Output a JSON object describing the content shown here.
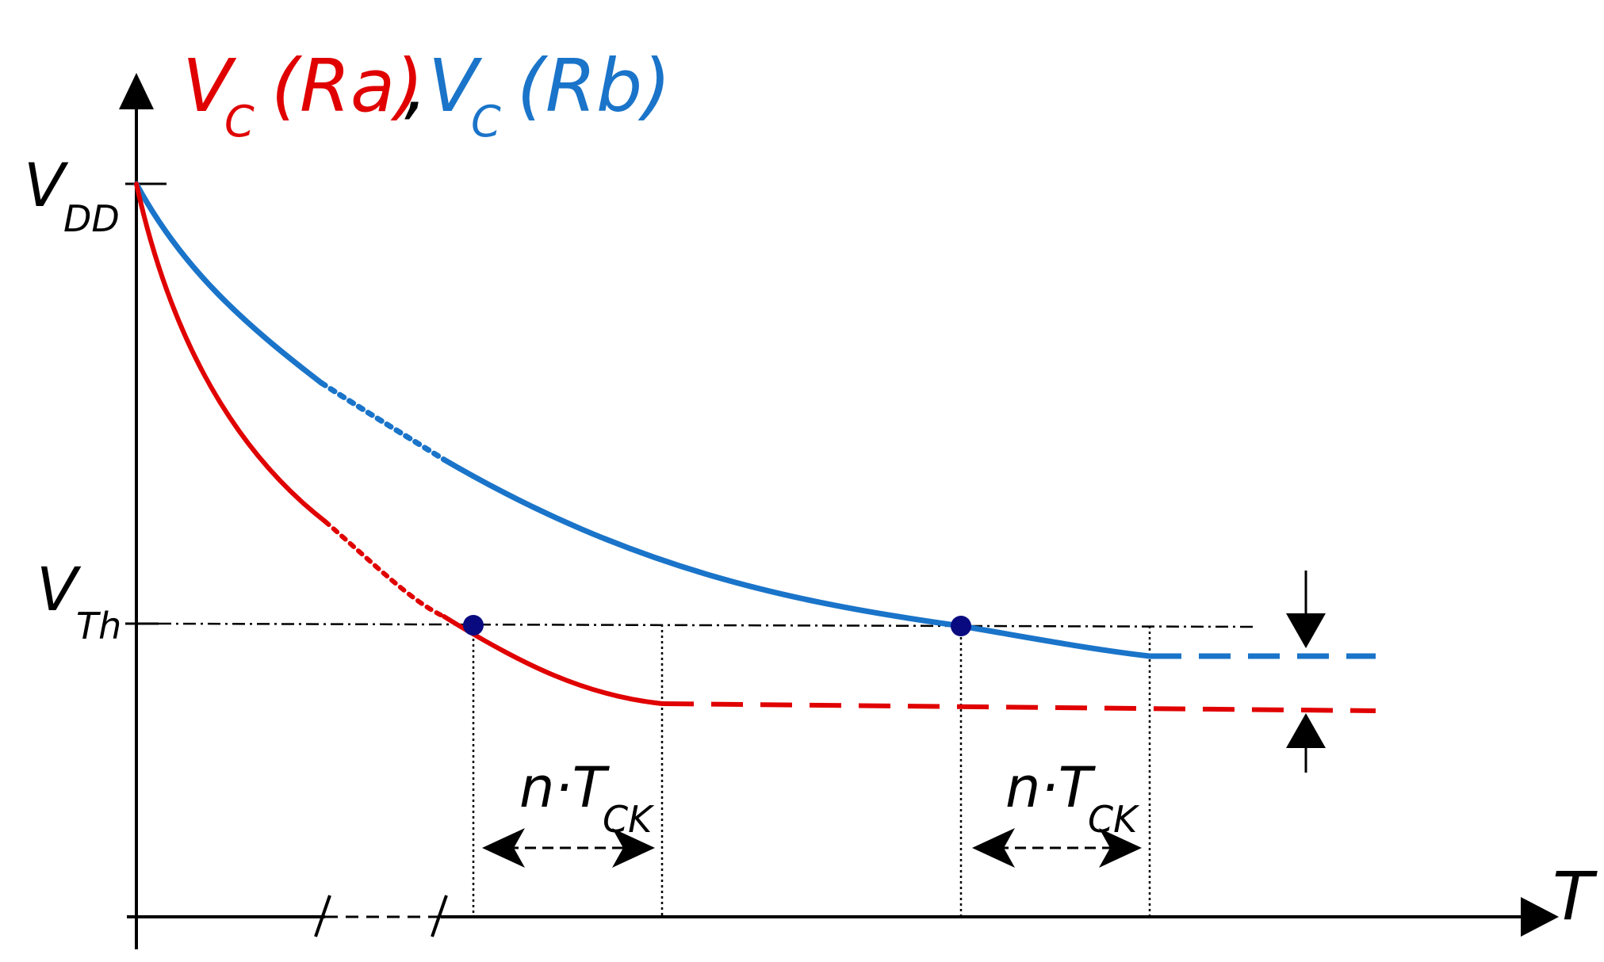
{
  "title": {
    "left": {
      "main": "V",
      "sub": "C",
      "suffix": "(Ra)",
      "color": "#e00000"
    },
    "separator": ",",
    "right": {
      "main": "V",
      "sub": "C",
      "suffix": "(Rb)",
      "color": "#1a74c9"
    }
  },
  "axes": {
    "x_label": "T",
    "y_tick_vdd": {
      "main": "V",
      "sub": "DD"
    },
    "y_tick_vth": {
      "main": "V",
      "sub": "Th"
    }
  },
  "intervals": [
    {
      "main": "n·T",
      "sub": "CK"
    },
    {
      "main": "n·T",
      "sub": "CK"
    }
  ],
  "colors": {
    "ra": "#e00000",
    "rb": "#1a74c9",
    "marker": "#0a0a80",
    "axis": "#000000"
  }
}
